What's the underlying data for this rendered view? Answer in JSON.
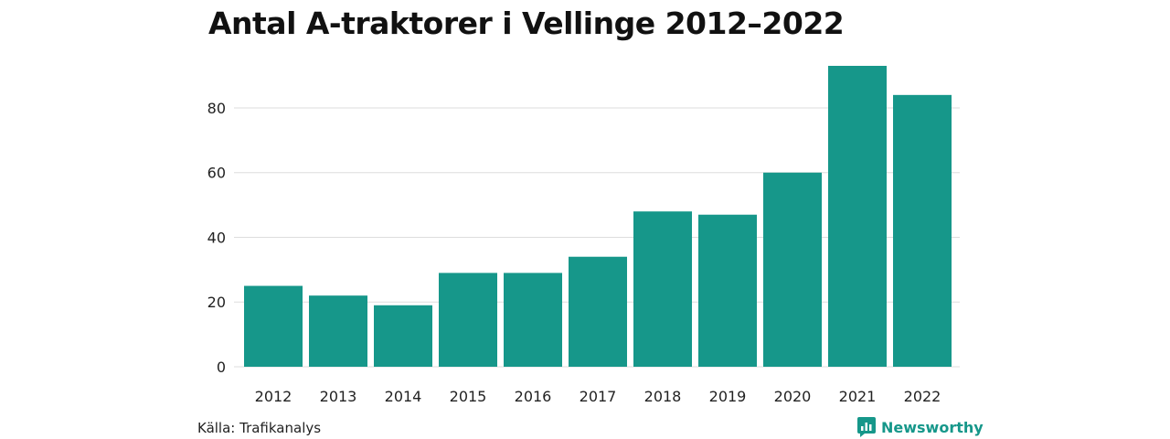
{
  "chart_data": {
    "type": "bar",
    "title": "Antal A-traktorer i Vellinge 2012–2022",
    "categories": [
      "2012",
      "2013",
      "2014",
      "2015",
      "2016",
      "2017",
      "2018",
      "2019",
      "2020",
      "2021",
      "2022"
    ],
    "values": [
      25,
      22,
      19,
      29,
      29,
      34,
      48,
      47,
      60,
      93,
      84
    ],
    "xlabel": "",
    "ylabel": "",
    "ylim": [
      0,
      93
    ],
    "yticks": [
      0,
      20,
      40,
      60,
      80
    ],
    "grid": true,
    "bar_color": "#16978a"
  },
  "footer": {
    "source": "Källa: Trafikanalys",
    "brand": "Newsworthy",
    "brand_color": "#16978a",
    "brand_icon": "newsworthy-logo-icon"
  }
}
